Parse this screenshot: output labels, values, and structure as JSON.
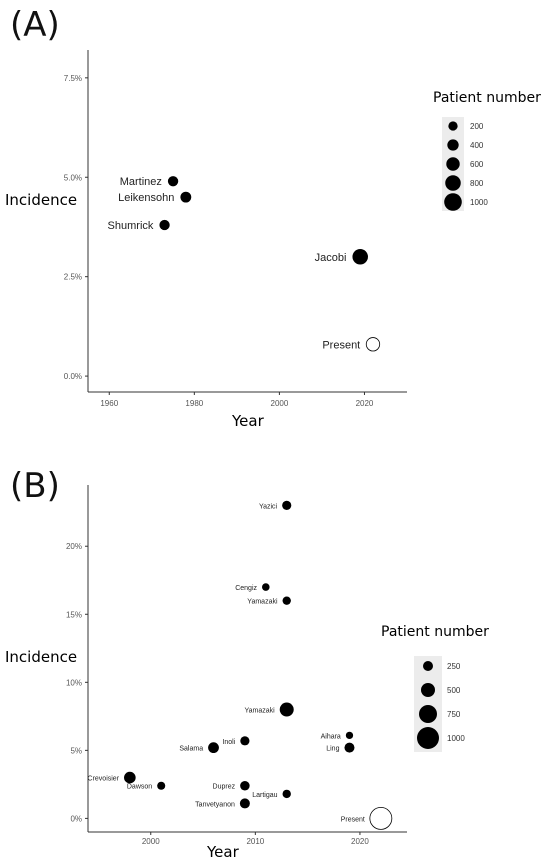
{
  "chart_data": [
    {
      "panel": "(A)",
      "type": "scatter",
      "xlabel": "Year",
      "ylabel": "Incidence",
      "xlim": [
        1955,
        2030
      ],
      "ylim": [
        -0.4,
        8.2
      ],
      "x_ticks": [
        1960,
        1980,
        2000,
        2020
      ],
      "y_ticks": [
        0,
        2.5,
        5.0,
        7.5
      ],
      "y_tick_labels": [
        "0.0%",
        "2.5%",
        "5.0%",
        "7.5%"
      ],
      "points": [
        {
          "label": "Martinez",
          "x": 1975,
          "y": 4.9,
          "n": 300,
          "filled": true
        },
        {
          "label": "Leikensohn",
          "x": 1978,
          "y": 4.5,
          "n": 350,
          "filled": true
        },
        {
          "label": "Shumrick",
          "x": 1973,
          "y": 3.8,
          "n": 300,
          "filled": true
        },
        {
          "label": "Jacobi",
          "x": 2019,
          "y": 3.0,
          "n": 800,
          "filled": true
        },
        {
          "label": "Present",
          "x": 2022,
          "y": 0.8,
          "n": 600,
          "filled": false
        }
      ],
      "legend": {
        "title": "Patient number",
        "values": [
          200,
          400,
          600,
          800,
          1000
        ]
      }
    },
    {
      "panel": "(B)",
      "type": "scatter",
      "xlabel": "Year",
      "ylabel": "Incidence",
      "xlim": [
        1994,
        2024.5
      ],
      "ylim": [
        -1,
        24.5
      ],
      "x_ticks": [
        2000,
        2010,
        2020
      ],
      "y_ticks": [
        0,
        5,
        10,
        15,
        20
      ],
      "y_tick_labels": [
        "0%",
        "5%",
        "10%",
        "15%",
        "20%"
      ],
      "points": [
        {
          "label": "Yazici",
          "x": 2013,
          "y": 23.0,
          "n": 200,
          "filled": true
        },
        {
          "label": "Cengiz",
          "x": 2011,
          "y": 17.0,
          "n": 100,
          "filled": true
        },
        {
          "label": "Yamazaki",
          "x": 2013,
          "y": 16.0,
          "n": 150,
          "filled": true
        },
        {
          "label": "Yamazaki",
          "x": 2013,
          "y": 8.0,
          "n": 500,
          "filled": true
        },
        {
          "label": "Aihara",
          "x": 2019,
          "y": 6.1,
          "n": 80,
          "filled": true
        },
        {
          "label": "Ling",
          "x": 2019,
          "y": 5.2,
          "n": 250,
          "filled": true
        },
        {
          "label": "Inoli",
          "x": 2009,
          "y": 5.7,
          "n": 200,
          "filled": true
        },
        {
          "label": "Salama",
          "x": 2006,
          "y": 5.2,
          "n": 300,
          "filled": true
        },
        {
          "label": "Crevoisier",
          "x": 1998,
          "y": 3.0,
          "n": 350,
          "filled": true
        },
        {
          "label": "Dawson",
          "x": 2001,
          "y": 2.4,
          "n": 130,
          "filled": true
        },
        {
          "label": "Duprez",
          "x": 2009,
          "y": 2.4,
          "n": 220,
          "filled": true
        },
        {
          "label": "Lartigau",
          "x": 2013,
          "y": 1.8,
          "n": 150,
          "filled": true
        },
        {
          "label": "Tanvetyanon",
          "x": 2009,
          "y": 1.1,
          "n": 250,
          "filled": true
        },
        {
          "label": "Present",
          "x": 2022,
          "y": 0,
          "n": 1000,
          "filled": false
        }
      ],
      "legend": {
        "title": "Patient number",
        "values": [
          250,
          500,
          750,
          1000
        ]
      }
    }
  ]
}
